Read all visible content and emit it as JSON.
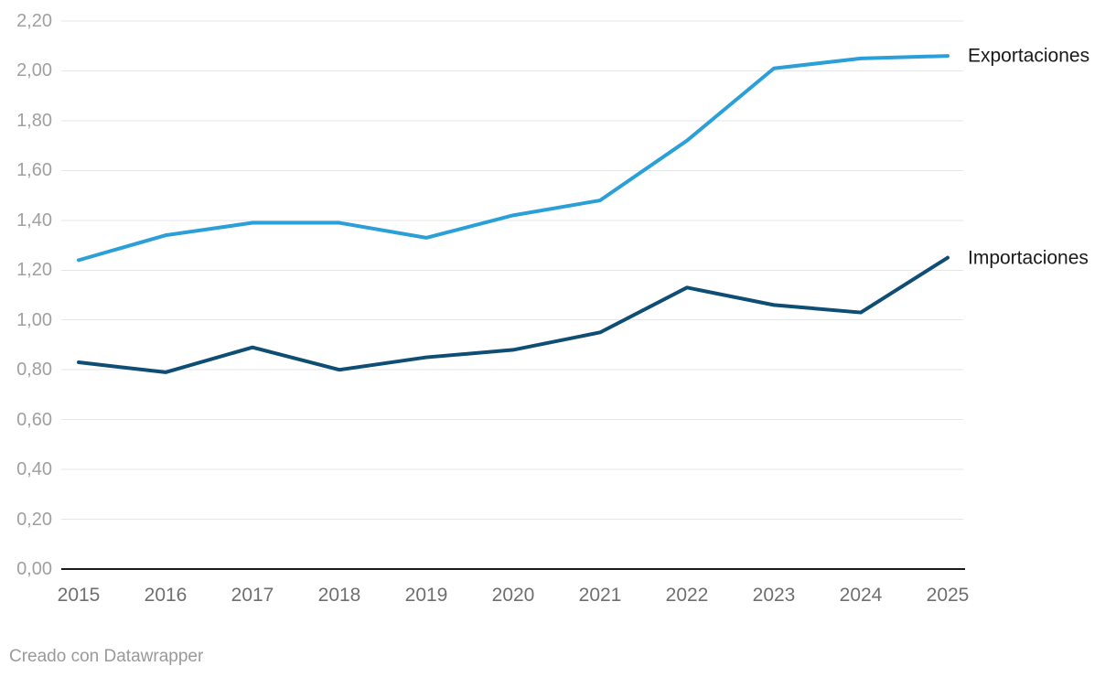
{
  "chart_data": {
    "type": "line",
    "x": [
      2015,
      2016,
      2017,
      2018,
      2019,
      2020,
      2021,
      2022,
      2023,
      2024,
      2025
    ],
    "series": [
      {
        "name": "Exportaciones",
        "color": "#2b9fd8",
        "values": [
          1.24,
          1.34,
          1.39,
          1.39,
          1.33,
          1.42,
          1.48,
          1.72,
          2.01,
          2.05,
          2.06
        ]
      },
      {
        "name": "Importaciones",
        "color": "#0e4d74",
        "values": [
          0.83,
          0.79,
          0.89,
          0.8,
          0.85,
          0.88,
          0.95,
          1.13,
          1.06,
          1.03,
          1.25
        ]
      }
    ],
    "title": "",
    "xlabel": "",
    "ylabel": "",
    "ylim": [
      0,
      2.2
    ],
    "ytick_step": 0.2,
    "ytick_labels": [
      "0,00",
      "0,20",
      "0,40",
      "0,60",
      "0,80",
      "1,00",
      "1,20",
      "1,40",
      "1,60",
      "1,80",
      "2,00",
      "2,20"
    ],
    "grid": true,
    "legend_position": "right-end-of-lines",
    "gridline_color": "#e6e6e6",
    "axis_line_color": "#1a1a1a"
  },
  "footer": {
    "credit": "Creado con Datawrapper"
  }
}
